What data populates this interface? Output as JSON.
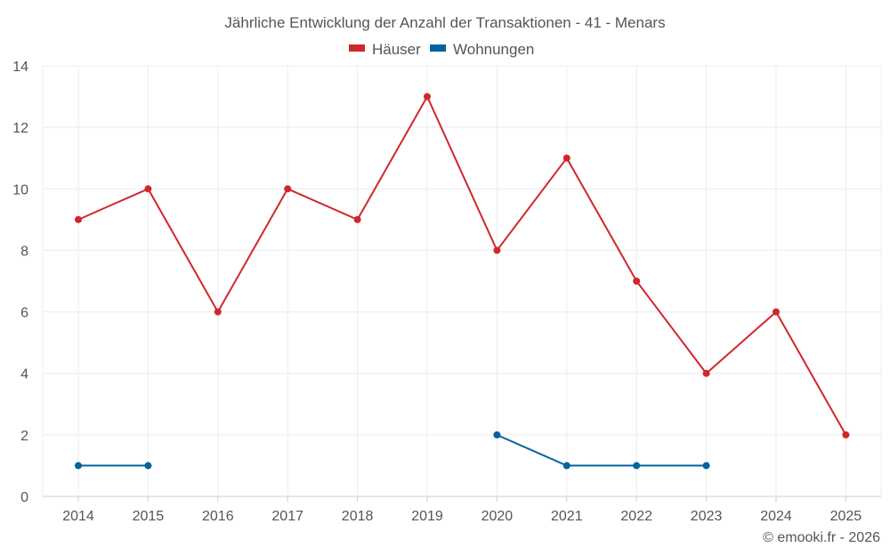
{
  "chart_data": {
    "type": "line",
    "title": "Jährliche Entwicklung der Anzahl der Transaktionen - 41 - Menars",
    "x": [
      "2014",
      "2015",
      "2016",
      "2017",
      "2018",
      "2019",
      "2020",
      "2021",
      "2022",
      "2023",
      "2024",
      "2025"
    ],
    "series": [
      {
        "name": "Häuser",
        "color": "#d0272d",
        "values": [
          9,
          10,
          6,
          10,
          9,
          13,
          8,
          11,
          7,
          4,
          6,
          2
        ]
      },
      {
        "name": "Wohnungen",
        "color": "#04629f",
        "values": [
          1,
          1,
          null,
          null,
          null,
          null,
          2,
          1,
          1,
          1,
          null,
          null
        ]
      }
    ],
    "ylim": [
      0,
      14
    ],
    "yticks": [
      "0",
      "2",
      "4",
      "6",
      "8",
      "10",
      "12",
      "14"
    ],
    "grid": true,
    "legend": "top-center"
  },
  "credit": "© emooki.fr - 2026"
}
